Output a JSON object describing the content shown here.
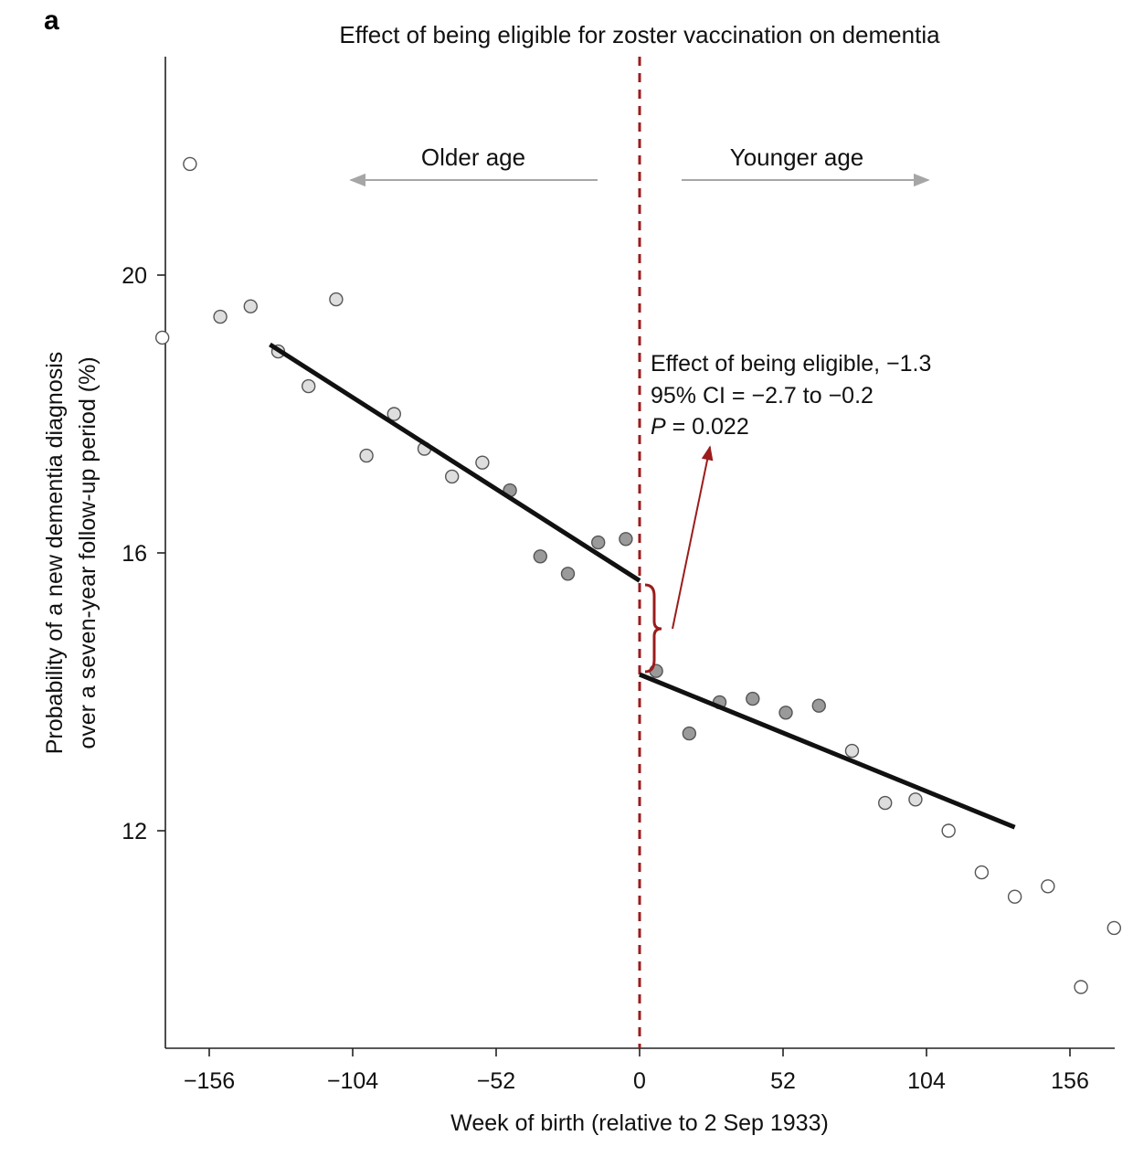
{
  "panel_label": "a",
  "chart_data": {
    "type": "scatter",
    "title": "Effect of being eligible for zoster vaccination on dementia",
    "xlabel": "Week of birth (relative to 2 Sep 1933)",
    "ylabel": [
      "Probability of a new dementia diagnosis",
      "over a seven-year follow-up period (%)"
    ],
    "xlim": [
      -173,
      173
    ],
    "ylim": [
      8.8,
      23.0
    ],
    "x_ticks": [
      -156,
      -104,
      -52,
      0,
      52,
      104,
      156
    ],
    "x_tick_labels": [
      "−156",
      "−104",
      "−52",
      "0",
      "52",
      "104",
      "156"
    ],
    "y_ticks": [
      12,
      16,
      20
    ],
    "y_tick_labels": [
      "12",
      "16",
      "20"
    ],
    "grid": false,
    "legend": "none",
    "cutoff_x": 0,
    "colors": {
      "cutoff": "#9b1c1c",
      "fit": "#111111",
      "arrow_gray": "#a6a6a6",
      "point_stroke": "#555555",
      "shade_outer": "#ffffff",
      "shade_mid": "#dedede",
      "shade_inner": "#9a9a9a"
    },
    "points": [
      {
        "x": -173,
        "y": 19.1,
        "shade": "outer"
      },
      {
        "x": -163,
        "y": 21.6,
        "shade": "outer"
      },
      {
        "x": -152,
        "y": 19.4,
        "shade": "mid"
      },
      {
        "x": -141,
        "y": 19.55,
        "shade": "mid"
      },
      {
        "x": -131,
        "y": 18.9,
        "shade": "mid"
      },
      {
        "x": -120,
        "y": 18.4,
        "shade": "mid"
      },
      {
        "x": -110,
        "y": 19.65,
        "shade": "mid"
      },
      {
        "x": -99,
        "y": 17.4,
        "shade": "mid"
      },
      {
        "x": -89,
        "y": 18.0,
        "shade": "mid"
      },
      {
        "x": -78,
        "y": 17.5,
        "shade": "mid"
      },
      {
        "x": -68,
        "y": 17.1,
        "shade": "mid"
      },
      {
        "x": -57,
        "y": 17.3,
        "shade": "mid"
      },
      {
        "x": -47,
        "y": 16.9,
        "shade": "inner"
      },
      {
        "x": -36,
        "y": 15.95,
        "shade": "inner"
      },
      {
        "x": -26,
        "y": 15.7,
        "shade": "inner"
      },
      {
        "x": -15,
        "y": 16.15,
        "shade": "inner"
      },
      {
        "x": -5,
        "y": 16.2,
        "shade": "inner"
      },
      {
        "x": 6,
        "y": 14.3,
        "shade": "inner"
      },
      {
        "x": 18,
        "y": 13.4,
        "shade": "inner"
      },
      {
        "x": 29,
        "y": 13.85,
        "shade": "inner"
      },
      {
        "x": 41,
        "y": 13.9,
        "shade": "inner"
      },
      {
        "x": 53,
        "y": 13.7,
        "shade": "inner"
      },
      {
        "x": 65,
        "y": 13.8,
        "shade": "inner"
      },
      {
        "x": 77,
        "y": 13.15,
        "shade": "mid"
      },
      {
        "x": 89,
        "y": 12.4,
        "shade": "mid"
      },
      {
        "x": 100,
        "y": 12.45,
        "shade": "mid"
      },
      {
        "x": 112,
        "y": 12.0,
        "shade": "outer"
      },
      {
        "x": 124,
        "y": 11.4,
        "shade": "outer"
      },
      {
        "x": 136,
        "y": 11.05,
        "shade": "outer"
      },
      {
        "x": 148,
        "y": 11.2,
        "shade": "outer"
      },
      {
        "x": 160,
        "y": 9.75,
        "shade": "outer"
      },
      {
        "x": 172,
        "y": 10.6,
        "shade": "outer"
      }
    ],
    "fit_lines": [
      {
        "x": [
          -134,
          0
        ],
        "y": [
          19.0,
          15.6
        ]
      },
      {
        "x": [
          0,
          136
        ],
        "y": [
          14.25,
          12.05
        ]
      }
    ],
    "direction_labels": {
      "left": "Older age",
      "right": "Younger age"
    },
    "annotation": {
      "line1": "Effect of being eligible, −1.3",
      "line2": "95% CI = −2.7 to −0.2",
      "line3_italic": "P",
      "line3_rest": " = 0.022"
    }
  }
}
